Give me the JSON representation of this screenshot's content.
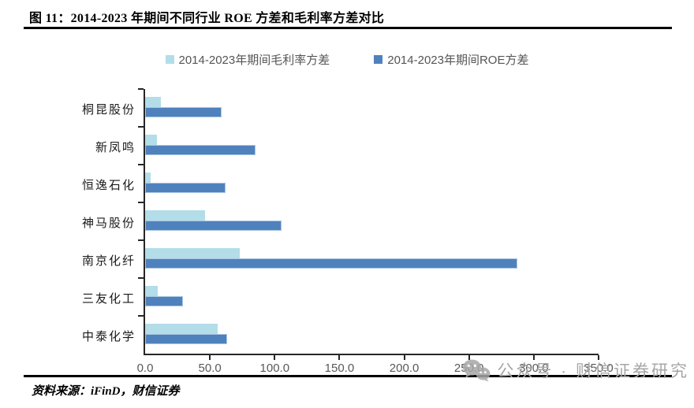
{
  "title": "图 11：2014-2023 年期间不同行业 ROE 方差和毛利率方差对比",
  "legend": [
    {
      "label": "2014-2023年期间毛利率方差",
      "color": "#B3DDE8"
    },
    {
      "label": "2014-2023年期间ROE方差",
      "color": "#4F81BD"
    }
  ],
  "chart_data": {
    "type": "bar",
    "orientation": "horizontal",
    "title": "2014-2023年期间不同行业ROE方差和毛利率方差对比",
    "categories": [
      "桐昆股份",
      "新凤鸣",
      "恒逸石化",
      "神马股份",
      "南京化纤",
      "三友化工",
      "中泰化学"
    ],
    "series": [
      {
        "name": "2014-2023年期间毛利率方差",
        "color": "#B3DDE8",
        "values": [
          12,
          9,
          4,
          46,
          73,
          10,
          56
        ]
      },
      {
        "name": "2014-2023年期间ROE方差",
        "color": "#4F81BD",
        "values": [
          59,
          85,
          62,
          105,
          287,
          29,
          63
        ]
      }
    ],
    "xlim": [
      0,
      350
    ],
    "xtick_labels": [
      "0.0",
      "50.0",
      "100.0",
      "150.0",
      "200.0",
      "250.0",
      "300.0",
      "350.0"
    ],
    "grid": false,
    "legend_position": "top",
    "bars_per_category_order": [
      "毛利率方差(上,浅蓝)",
      "ROE方差(下,深蓝)"
    ]
  },
  "watermark": {
    "icon": "wechat-icon",
    "text": "公众号 · 财信证券研究"
  },
  "footer": {
    "source": "资料来源：iFinD，财信证券"
  }
}
